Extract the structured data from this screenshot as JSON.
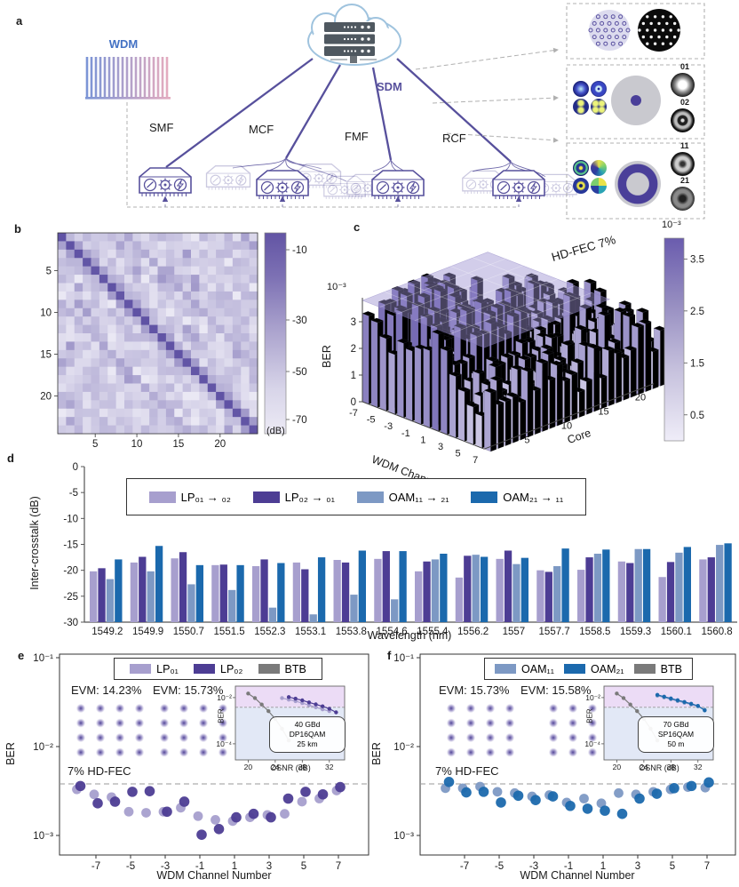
{
  "panels": {
    "a": "a",
    "b": "b",
    "c": "c",
    "d": "d",
    "e": "e",
    "f": "f"
  },
  "colors": {
    "accent_purple": "#57509c",
    "light_purple": "#a79fce",
    "dark_purple": "#4d3d94",
    "blue_gray": "#7d99c4",
    "blue": "#1b69ad",
    "btb_gray": "#7a7a7a",
    "heat_dark": "#5f52a4",
    "heat_light": "#eae8f4",
    "cloud_blue": "#9fc3de",
    "wdm_blue": "#4472c4",
    "dash_gray": "#b0b0b0",
    "inset_purple_zone": "#ecdcf6",
    "inset_blue_zone": "#e2e8f6"
  },
  "panel_a": {
    "wdm_label": "WDM",
    "sdm_label": "SDM",
    "fibers": [
      "SMF",
      "MCF",
      "FMF",
      "RCF"
    ],
    "comb_colors": [
      "#7c95d6",
      "#e3abbf"
    ],
    "insets": [
      {
        "labels": []
      },
      {
        "labels": [
          "01",
          "02"
        ]
      },
      {
        "labels": [
          "11",
          "21"
        ]
      }
    ]
  },
  "chart_data": [
    {
      "id": "b",
      "type": "heatmap",
      "size": 24,
      "x_ticks": [
        5,
        10,
        15,
        20
      ],
      "y_ticks": [
        5,
        10,
        15,
        20
      ],
      "colorbar": {
        "unit": "(dB)",
        "ticks": [
          -10,
          -30,
          -50,
          -70
        ]
      },
      "diagonal_db": -10,
      "near_diagonal_db": -42,
      "secondary_diagonal_offset": 8,
      "secondary_diagonal_db": -50,
      "background_db_range": [
        -75,
        -55
      ],
      "seed": 11
    },
    {
      "id": "c",
      "type": "bar3d",
      "zlabel": "BER",
      "z_exp_label": "10⁻³",
      "x_label": "WDM Channel",
      "y_label": "Core",
      "x_ticks": [
        -7,
        -5,
        -3,
        -1,
        1,
        3,
        5,
        7
      ],
      "y_ticks": [
        5,
        10,
        15,
        20
      ],
      "z_ticks": [
        0,
        1,
        2,
        3
      ],
      "channels": 15,
      "cores": 24,
      "ber_scale": "1e-3",
      "plane": {
        "label": "HD-FEC 7%",
        "value": 3.8
      },
      "colorbar": {
        "exp_label": "10⁻³",
        "ticks": [
          3.5,
          2.5,
          1.5,
          0.5
        ],
        "max": 3.9,
        "min": 0
      },
      "seed": 5
    },
    {
      "id": "d",
      "type": "bar",
      "ylabel": "Inter-crosstalk (dB)",
      "xlabel": "Wavelength (nm)",
      "ylim": [
        0,
        -30
      ],
      "y_ticks": [
        0,
        -5,
        -10,
        -15,
        -20,
        -25,
        -30
      ],
      "categories": [
        "1549.2",
        "1549.9",
        "1550.7",
        "1551.5",
        "1552.3",
        "1553.1",
        "1553.8",
        "1554.6",
        "1555.4",
        "1556.2",
        "1557",
        "1557.7",
        "1558.5",
        "1559.3",
        "1560.1",
        "1560.8"
      ],
      "series": [
        {
          "label": "LP₀₁",
          "arrow_to": "₀₂",
          "color": "#a79fce",
          "values": [
            -20.2,
            -18.5,
            -17.7,
            -19.0,
            -19.2,
            -18.5,
            -18.0,
            -17.8,
            -20.2,
            -21.4,
            -17.8,
            -20.0,
            -19.9,
            -18.3,
            -21.3,
            -17.9
          ]
        },
        {
          "label": "LP₀₂",
          "arrow_to": "₀₁",
          "color": "#4d3d94",
          "values": [
            -19.6,
            -17.4,
            -16.5,
            -18.9,
            -17.9,
            -19.8,
            -18.5,
            -16.3,
            -18.3,
            -17.2,
            -16.2,
            -20.3,
            -17.5,
            -18.6,
            -18.4,
            -17.5
          ]
        },
        {
          "label": "OAM₁₁",
          "arrow_to": "₂₁",
          "color": "#7d99c4",
          "values": [
            -21.7,
            -20.2,
            -22.7,
            -23.8,
            -27.2,
            -28.5,
            -24.7,
            -25.6,
            -17.9,
            -17.0,
            -18.8,
            -19.2,
            -16.8,
            -15.9,
            -16.6,
            -15.1
          ]
        },
        {
          "label": "OAM₂₁",
          "arrow_to": "₁₁",
          "color": "#1b69ad",
          "values": [
            -17.9,
            -15.3,
            -19.0,
            -19.0,
            -18.6,
            -17.5,
            -16.2,
            -16.3,
            -16.8,
            -17.4,
            -17.6,
            -15.8,
            -16.0,
            -15.9,
            -15.5,
            -14.8
          ]
        }
      ]
    },
    {
      "id": "e",
      "type": "scatter",
      "ylabel": "BER",
      "xlabel": "WDM Channel Number",
      "x_ticks": [
        -7,
        -5,
        -3,
        -1,
        1,
        3,
        5,
        7
      ],
      "y_tick_labels": [
        "10⁻¹",
        "10⁻²",
        "10⁻³"
      ],
      "y_tick_exps": [
        -1,
        -2,
        -3
      ],
      "threshold": {
        "label": "7% HD-FEC",
        "value_1e3": 3.8
      },
      "evm": [
        "EVM: 14.23%",
        "EVM: 15.73%"
      ],
      "x": [
        -8,
        -7,
        -6,
        -5,
        -4,
        -3,
        -2,
        -1,
        0,
        1,
        2,
        3,
        4,
        5,
        6,
        7
      ],
      "series": [
        {
          "label": "LP₀₁",
          "color": "#a79fce",
          "values_1e3": [
            3.3,
            2.9,
            2.7,
            1.85,
            1.8,
            1.85,
            2.05,
            1.65,
            1.5,
            1.45,
            1.6,
            1.7,
            1.75,
            2.4,
            2.6,
            3.2
          ]
        },
        {
          "label": "LP₀₂",
          "color": "#4d3d94",
          "values_1e3": [
            3.6,
            2.3,
            2.4,
            3.1,
            3.15,
            1.85,
            2.4,
            1.02,
            1.18,
            1.6,
            1.75,
            1.6,
            2.6,
            3.1,
            2.9,
            3.5
          ]
        },
        {
          "label": "BTB",
          "color": "#7a7a7a",
          "values_1e3": []
        }
      ]
    },
    {
      "id": "e_inset",
      "type": "line",
      "xlabel": "OSNR (dB)",
      "ylabel": "BER",
      "x_ticks": [
        20,
        24,
        28,
        32
      ],
      "y_tick_labels": [
        "10⁻²",
        "10⁻⁴"
      ],
      "note": [
        "40 GBd",
        "DP16QAM",
        "25 km"
      ],
      "threshold": 0.0038,
      "series": [
        {
          "label": "BTB",
          "color": "#7a7a7a",
          "x": [
            20,
            21,
            22,
            23,
            24,
            25,
            26
          ],
          "y": [
            0.015,
            0.0095,
            0.005,
            0.0026,
            0.0012,
            0.00045,
            0.00014
          ]
        },
        {
          "label": "LP₀₁",
          "color": "#a79fce",
          "x": [
            25,
            26,
            27,
            28,
            29,
            30,
            31,
            32
          ],
          "y": [
            0.0095,
            0.0082,
            0.007,
            0.0058,
            0.0047,
            0.0038,
            0.0031,
            0.0026
          ]
        },
        {
          "label": "LP₀₂",
          "color": "#4d3d94",
          "x": [
            26,
            27,
            28,
            29,
            30,
            31,
            32,
            33
          ],
          "y": [
            0.0105,
            0.009,
            0.0076,
            0.0062,
            0.0051,
            0.0042,
            0.0033,
            0.0023
          ]
        }
      ]
    },
    {
      "id": "f",
      "type": "scatter",
      "ylabel": "BER",
      "xlabel": "WDM Channel Number",
      "x_ticks": [
        -7,
        -5,
        -3,
        -1,
        1,
        3,
        5,
        7
      ],
      "y_tick_labels": [
        "10⁻¹",
        "10⁻²",
        "10⁻³"
      ],
      "y_tick_exps": [
        -1,
        -2,
        -3
      ],
      "threshold": {
        "label": "7% HD-FEC",
        "value_1e3": 3.8
      },
      "evm": [
        "EVM: 15.73%",
        "EVM: 15.58%"
      ],
      "x": [
        -8,
        -7,
        -6,
        -5,
        -4,
        -3,
        -2,
        -1,
        0,
        1,
        2,
        3,
        4,
        5,
        6,
        7
      ],
      "series": [
        {
          "label": "OAM₁₁",
          "color": "#7d99c4",
          "values_1e3": [
            3.4,
            3.4,
            3.55,
            3.1,
            3.0,
            2.75,
            2.85,
            2.35,
            2.6,
            2.3,
            3.0,
            2.9,
            3.1,
            3.3,
            3.5,
            3.45
          ]
        },
        {
          "label": "OAM₂₁",
          "color": "#1b69ad",
          "values_1e3": [
            4.0,
            3.05,
            3.1,
            2.35,
            2.8,
            2.5,
            2.75,
            2.15,
            2.0,
            1.9,
            1.75,
            2.6,
            2.95,
            3.4,
            3.6,
            3.95
          ]
        },
        {
          "label": "BTB",
          "color": "#7a7a7a",
          "values_1e3": []
        }
      ]
    },
    {
      "id": "f_inset",
      "type": "line",
      "xlabel": "OSNR (dB)",
      "ylabel": "BER",
      "x_ticks": [
        20,
        24,
        28,
        32
      ],
      "y_tick_labels": [
        "10⁻²",
        "10⁻⁴"
      ],
      "note": [
        "70 GBd",
        "SP16QAM",
        "50 m"
      ],
      "threshold": 0.0038,
      "series": [
        {
          "label": "BTB",
          "color": "#7a7a7a",
          "x": [
            20,
            21,
            22,
            23,
            24,
            25,
            26
          ],
          "y": [
            0.015,
            0.0095,
            0.005,
            0.0026,
            0.0012,
            0.00045,
            0.00014
          ]
        },
        {
          "label": "OAM₁₁",
          "color": "#7d99c4",
          "x": [
            26,
            27,
            28,
            29,
            30,
            31,
            32,
            33
          ],
          "y": [
            0.0122,
            0.0102,
            0.0085,
            0.0071,
            0.006,
            0.005,
            0.0042,
            0.003
          ]
        },
        {
          "label": "OAM₂₁",
          "color": "#1b69ad",
          "x": [
            26,
            27,
            28,
            29,
            30,
            31,
            32,
            33
          ],
          "y": [
            0.0132,
            0.011,
            0.0092,
            0.0077,
            0.0065,
            0.0054,
            0.0044,
            0.0028
          ]
        }
      ]
    }
  ]
}
